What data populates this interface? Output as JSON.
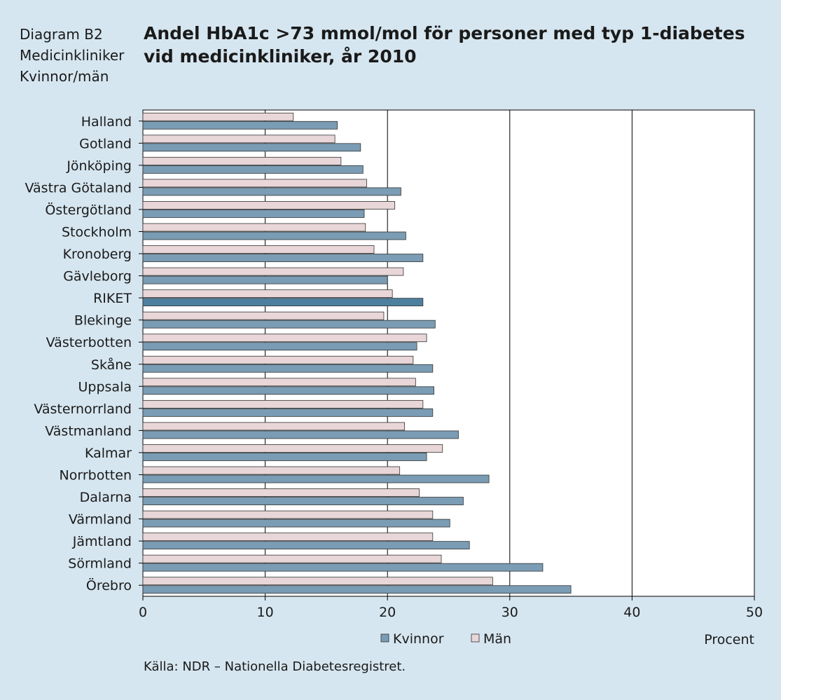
{
  "header": {
    "side_line1": "Diagram  B2",
    "side_line2": "Medicinkliniker",
    "side_line3": "Kvinnor/män",
    "title_line1": "Andel HbA1c >73 mmol/mol  för personer med typ 1-diabetes",
    "title_line2": "vid medicinkliniker, år 2010"
  },
  "source": "Källa: NDR – Nationella Diabetesregistret.",
  "colors": {
    "kvinnor": "#7a9cb4",
    "man": "#e8d6d8",
    "riket_kvinnor": "#4d7f9e",
    "background": "#d6e6f0"
  },
  "chart_data": {
    "type": "bar",
    "orientation": "horizontal",
    "categories": [
      "Halland",
      "Gotland",
      "Jönköping",
      "Västra Götaland",
      "Östergötland",
      "Stockholm",
      "Kronoberg",
      "Gävleborg",
      "RIKET",
      "Blekinge",
      "Västerbotten",
      "Skåne",
      "Uppsala",
      "Västernorrland",
      "Västmanland",
      "Kalmar",
      "Norrbotten",
      "Dalarna",
      "Värmland",
      "Jämtland",
      "Sörmland",
      "Örebro"
    ],
    "series": [
      {
        "name": "Kvinnor",
        "values": [
          15.9,
          17.8,
          18.0,
          21.1,
          18.1,
          21.5,
          22.9,
          20.0,
          22.9,
          23.9,
          22.4,
          23.7,
          23.8,
          23.7,
          25.8,
          23.2,
          28.3,
          26.2,
          25.1,
          26.7,
          32.7,
          35.0
        ]
      },
      {
        "name": "Män",
        "values": [
          12.3,
          15.7,
          16.2,
          18.3,
          20.6,
          18.2,
          18.9,
          21.3,
          20.4,
          19.7,
          23.2,
          22.1,
          22.3,
          22.9,
          21.4,
          24.5,
          21.0,
          22.6,
          23.7,
          23.7,
          24.4,
          28.6
        ]
      }
    ],
    "xlim": [
      0,
      50
    ],
    "xticks": [
      "0",
      "10",
      "20",
      "30",
      "40",
      "50"
    ],
    "xlabel": "Procent",
    "grid": "vertical",
    "legend": "bottom-right"
  }
}
